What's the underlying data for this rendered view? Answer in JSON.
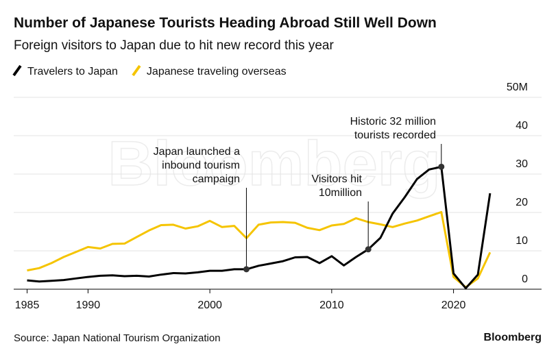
{
  "chart_data": {
    "type": "line",
    "title": "Number of Japanese Tourists Heading Abroad Still Well Down",
    "subtitle": "Foreign visitors to Japan due to hit new record this year",
    "source": "Source: Japan National Tourism Organization",
    "brand": "Bloomberg",
    "watermark": "Bloomberg",
    "x": [
      1985,
      1986,
      1987,
      1988,
      1989,
      1990,
      1991,
      1992,
      1993,
      1994,
      1995,
      1996,
      1997,
      1998,
      1999,
      2000,
      2001,
      2002,
      2003,
      2004,
      2005,
      2006,
      2007,
      2008,
      2009,
      2010,
      2011,
      2012,
      2013,
      2014,
      2015,
      2016,
      2017,
      2018,
      2019,
      2020,
      2021,
      2022,
      2023
    ],
    "series": [
      {
        "name": "Travelers to Japan",
        "color": "#000000",
        "values": [
          2.3,
          2.0,
          2.2,
          2.4,
          2.8,
          3.2,
          3.5,
          3.6,
          3.4,
          3.5,
          3.3,
          3.8,
          4.2,
          4.1,
          4.4,
          4.8,
          4.8,
          5.2,
          5.2,
          6.1,
          6.7,
          7.3,
          8.3,
          8.4,
          6.8,
          8.6,
          6.2,
          8.4,
          10.4,
          13.4,
          19.7,
          24.0,
          28.7,
          31.2,
          31.9,
          4.1,
          0.25,
          3.8,
          25.0
        ]
      },
      {
        "name": "Japanese traveling overseas",
        "color": "#f5c400",
        "values": [
          4.9,
          5.5,
          6.8,
          8.4,
          9.7,
          11.0,
          10.6,
          11.8,
          11.9,
          13.6,
          15.3,
          16.7,
          16.8,
          15.8,
          16.4,
          17.8,
          16.2,
          16.5,
          13.3,
          16.8,
          17.4,
          17.5,
          17.3,
          16.0,
          15.4,
          16.6,
          17.0,
          18.5,
          17.5,
          16.9,
          16.2,
          17.1,
          17.9,
          19.0,
          20.1,
          3.2,
          0.5,
          2.8,
          9.6
        ]
      }
    ],
    "annotations": [
      {
        "lines": [
          "Japan launched a",
          "inbound tourism",
          "campaign"
        ]
      },
      {
        "lines": [
          "Visitors hit",
          "10million"
        ]
      },
      {
        "lines": [
          "Historic 32 million",
          "tourists recorded"
        ]
      }
    ],
    "xlim": [
      1983.9,
      2026.1
    ],
    "xticks": [
      1985,
      1990,
      2000,
      2010,
      2020
    ],
    "ylim": [
      0,
      50
    ],
    "yticks": [
      0,
      10,
      20,
      30,
      40,
      {
        "value": 50,
        "label": "50M"
      }
    ],
    "grid": true
  }
}
